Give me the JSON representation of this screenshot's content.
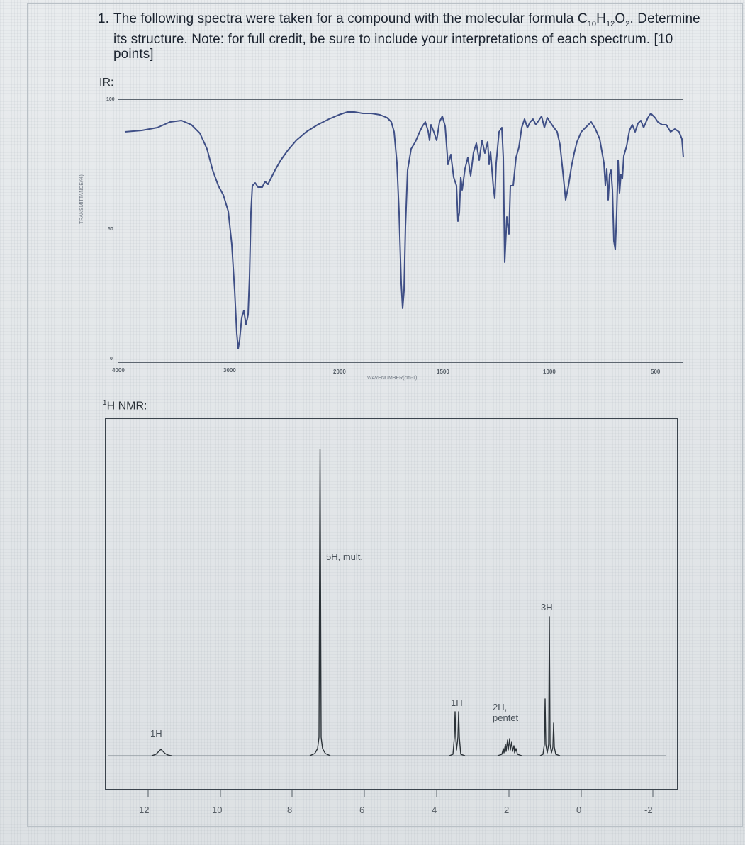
{
  "question": {
    "number": "1.",
    "text_before": "The following spectra were taken for a compound with the molecular formula C",
    "formula_c_sub": "10",
    "formula_h": "H",
    "formula_h_sub": "12",
    "formula_o": "O",
    "formula_o_sub": "2",
    "text_after": ". Determine its structure. Note: for full credit, be sure to include your interpretations of each spectrum. [10 points]"
  },
  "ir": {
    "label": "IR:",
    "y_ticks": [
      "100",
      "50",
      "0"
    ],
    "x_ticks": [
      "4000",
      "3000",
      "2000",
      "1500",
      "1000",
      "500"
    ],
    "y_axis_title": "TRANSMITTANCE(%)",
    "x_axis_title": "WAVENUMBER(cm-1)",
    "line_color": "#3f4f86"
  },
  "nmr": {
    "label": "1H NMR:",
    "label_sup": "1",
    "label_rest": "H NMR:",
    "x_ticks": [
      "12",
      "10",
      "8",
      "6",
      "4",
      "2",
      "0",
      "-2"
    ],
    "peaks": [
      {
        "label": "1H"
      },
      {
        "label": "5H, mult."
      },
      {
        "label": "1H"
      },
      {
        "label": "2H,",
        "label2": "pentet"
      },
      {
        "label": "3H"
      }
    ],
    "line_color": "#2b3238"
  }
}
